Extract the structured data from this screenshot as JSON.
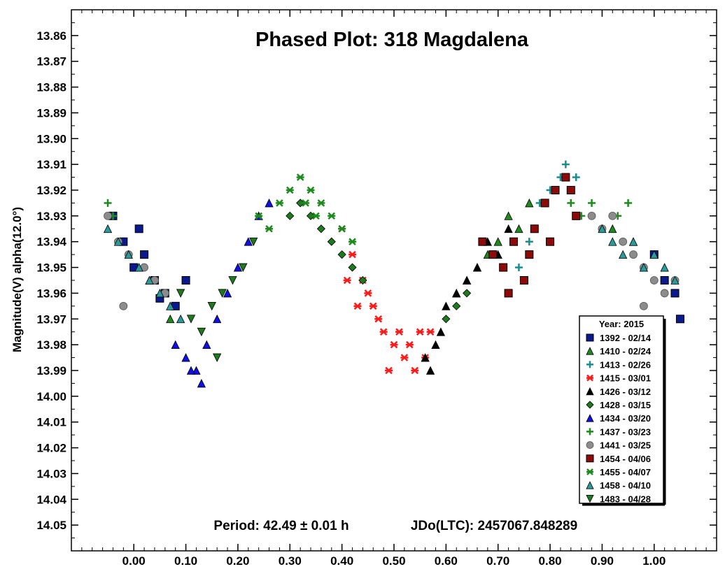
{
  "chart_data": {
    "type": "scatter",
    "title": "Phased Plot: 318 Magdalena",
    "ylabel": "Magnitude(V) alpha(12.0°)",
    "xlabel": "",
    "xlim": [
      -0.12,
      1.12
    ],
    "ylim": [
      13.85,
      14.06
    ],
    "y_inverted": true,
    "x_ticks": [
      "0.00",
      "0.10",
      "0.20",
      "0.30",
      "0.40",
      "0.50",
      "0.60",
      "0.70",
      "0.80",
      "0.90",
      "1.00"
    ],
    "y_ticks": [
      "13.86",
      "13.87",
      "13.88",
      "13.89",
      "13.90",
      "13.91",
      "13.92",
      "13.93",
      "13.94",
      "13.95",
      "13.96",
      "13.97",
      "13.98",
      "13.99",
      "14.00",
      "14.01",
      "14.02",
      "14.03",
      "14.04",
      "14.05"
    ],
    "period_text": "Period: 42.49 ± 0.01 h",
    "epoch_text": "JDo(LTC): 2457067.848289",
    "legend_title": "Year: 2015",
    "legend_position": "bottom-right",
    "series": [
      {
        "name": "1392 - 02/14",
        "marker": "square",
        "color": "#0a1a8c",
        "x": [
          -0.04,
          -0.02,
          0.0,
          0.02,
          0.04,
          0.06,
          0.08,
          0.1,
          1.0,
          1.02,
          1.04,
          1.05,
          0.01,
          0.05
        ],
        "y": [
          13.93,
          13.94,
          13.95,
          13.945,
          13.955,
          13.96,
          13.965,
          13.955,
          13.945,
          13.955,
          13.96,
          13.97,
          13.935,
          13.962
        ]
      },
      {
        "name": "1410 - 02/24",
        "marker": "triangle-up",
        "color": "#1e8a1e",
        "x": [
          0.62,
          0.64,
          0.66,
          0.68,
          0.7,
          0.72,
          0.74,
          0.76,
          0.03,
          0.07,
          0.92,
          0.96
        ],
        "y": [
          13.96,
          13.955,
          13.95,
          13.945,
          13.94,
          13.93,
          13.935,
          13.925,
          13.955,
          13.97,
          13.935,
          13.94
        ]
      },
      {
        "name": "1413 - 02/26",
        "marker": "plus",
        "color": "#1a8c8c",
        "x": [
          0.78,
          0.8,
          0.82,
          0.83,
          0.84,
          0.85,
          0.76,
          0.74
        ],
        "y": [
          13.925,
          13.92,
          13.915,
          13.91,
          13.92,
          13.915,
          13.94,
          13.95
        ]
      },
      {
        "name": "1415 - 03/01",
        "marker": "asterisk",
        "color": "#ff1a1a",
        "x": [
          0.4,
          0.42,
          0.44,
          0.45,
          0.46,
          0.47,
          0.48,
          0.5,
          0.51,
          0.52,
          0.53,
          0.54,
          0.55,
          0.56,
          0.57,
          0.43,
          0.49,
          0.41
        ],
        "y": [
          13.935,
          13.945,
          13.955,
          13.96,
          13.965,
          13.97,
          13.975,
          13.98,
          13.975,
          13.985,
          13.98,
          13.99,
          13.975,
          13.985,
          13.975,
          13.965,
          13.99,
          13.955
        ]
      },
      {
        "name": "1426 - 03/12",
        "marker": "triangle-up",
        "color": "#000000",
        "x": [
          0.56,
          0.57,
          0.58,
          0.59,
          0.6,
          0.62,
          0.64,
          0.66,
          0.68,
          0.7,
          0.72
        ],
        "y": [
          13.985,
          13.99,
          13.98,
          13.975,
          13.965,
          13.96,
          13.955,
          13.95,
          13.94,
          13.945,
          13.935
        ]
      },
      {
        "name": "1428 - 03/15",
        "marker": "diamond",
        "color": "#1e7a1e",
        "x": [
          0.3,
          0.32,
          0.34,
          0.36,
          0.38,
          0.4,
          0.42,
          0.44,
          0.6,
          0.62,
          0.64
        ],
        "y": [
          13.93,
          13.925,
          13.93,
          13.935,
          13.94,
          13.945,
          13.95,
          13.955,
          13.97,
          13.965,
          13.96
        ]
      },
      {
        "name": "1434 - 03/20",
        "marker": "triangle-up",
        "color": "#1010e0",
        "x": [
          0.08,
          0.1,
          0.12,
          0.14,
          0.16,
          0.18,
          0.2,
          0.22,
          0.24,
          0.26,
          0.13,
          0.11
        ],
        "y": [
          13.98,
          13.985,
          13.99,
          13.98,
          13.97,
          13.96,
          13.95,
          13.94,
          13.93,
          13.925,
          13.995,
          13.99
        ]
      },
      {
        "name": "1437 - 03/23",
        "marker": "plus",
        "color": "#1e8a1e",
        "x": [
          -0.05,
          -0.04,
          0.84,
          0.86,
          0.88,
          0.9,
          0.93,
          0.95
        ],
        "y": [
          13.925,
          13.93,
          13.925,
          13.93,
          13.925,
          13.935,
          13.93,
          13.925
        ]
      },
      {
        "name": "1441 - 03/25",
        "marker": "circle",
        "color": "#8c8c8c",
        "x": [
          -0.05,
          -0.03,
          -0.01,
          0.02,
          0.04,
          0.06,
          0.88,
          0.9,
          0.92,
          0.94,
          0.96,
          0.98,
          1.0,
          1.02,
          1.04,
          -0.02,
          0.98
        ],
        "y": [
          13.93,
          13.94,
          13.945,
          13.95,
          13.955,
          13.96,
          13.93,
          13.935,
          13.93,
          13.94,
          13.945,
          13.95,
          13.955,
          13.96,
          13.955,
          13.965,
          13.965
        ]
      },
      {
        "name": "1454 - 04/06",
        "marker": "square",
        "color": "#8b0a0a",
        "x": [
          0.67,
          0.69,
          0.71,
          0.73,
          0.75,
          0.77,
          0.79,
          0.81,
          0.83,
          0.84,
          0.85,
          0.72,
          0.76,
          0.8
        ],
        "y": [
          13.94,
          13.945,
          13.95,
          13.94,
          13.955,
          13.935,
          13.925,
          13.92,
          13.915,
          13.92,
          13.93,
          13.96,
          13.945,
          13.94
        ]
      },
      {
        "name": "1455 - 04/07",
        "marker": "asterisk",
        "color": "#1e8a1e",
        "x": [
          0.24,
          0.26,
          0.28,
          0.3,
          0.32,
          0.34,
          0.36,
          0.38,
          0.4,
          0.42,
          0.33,
          0.35
        ],
        "y": [
          13.93,
          13.935,
          13.925,
          13.92,
          13.915,
          13.92,
          13.925,
          13.93,
          13.935,
          13.94,
          13.925,
          13.93
        ]
      },
      {
        "name": "1458 - 04/10",
        "marker": "triangle-up",
        "color": "#2a9a9a",
        "x": [
          -0.05,
          -0.03,
          -0.01,
          0.01,
          0.03,
          0.05,
          0.07,
          0.09,
          0.9,
          0.92,
          0.94,
          0.96,
          0.98,
          1.0,
          1.02,
          1.04
        ],
        "y": [
          13.935,
          13.94,
          13.945,
          13.95,
          13.955,
          13.96,
          13.965,
          13.97,
          13.935,
          13.94,
          13.945,
          13.94,
          13.95,
          13.945,
          13.95,
          13.955
        ]
      },
      {
        "name": "1483 - 04/28",
        "marker": "triangle-down",
        "color": "#1e7a1e",
        "x": [
          0.09,
          0.11,
          0.13,
          0.15,
          0.17,
          0.19,
          0.21,
          0.23,
          0.16
        ],
        "y": [
          13.96,
          13.97,
          13.975,
          13.965,
          13.96,
          13.955,
          13.95,
          13.94,
          13.985
        ]
      }
    ]
  }
}
